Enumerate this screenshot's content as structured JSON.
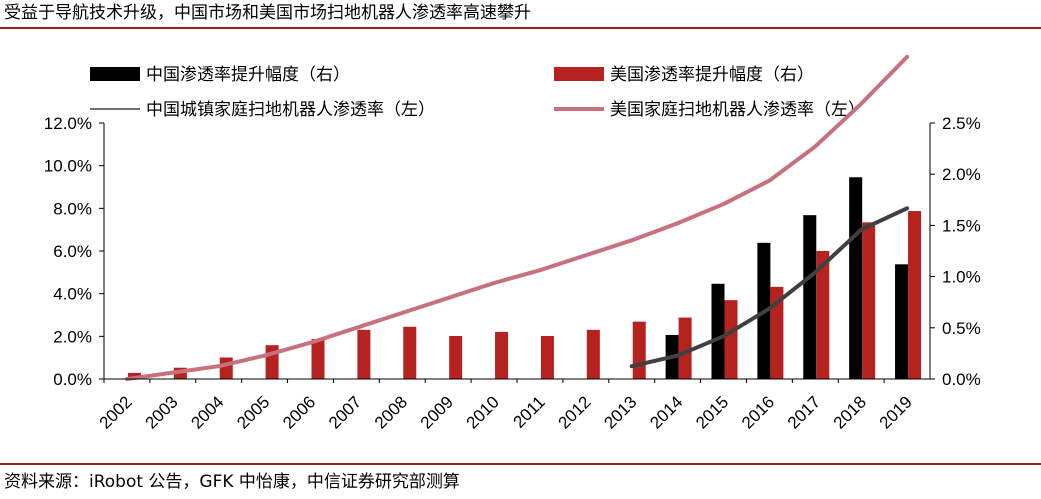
{
  "title": "受益于导航技术升级，中国市场和美国市场扫地机器人渗透率高速攀升",
  "source": "资料来源：iRobot 公告，GFK 中怡康，中信证券研究部测算",
  "chart_data": {
    "type": "bar",
    "categories": [
      "2002",
      "2003",
      "2004",
      "2005",
      "2006",
      "2007",
      "2008",
      "2009",
      "2010",
      "2011",
      "2012",
      "2013",
      "2014",
      "2015",
      "2016",
      "2017",
      "2018",
      "2019"
    ],
    "y_left": {
      "min": 0,
      "max": 12,
      "step": 2,
      "format": "percent1",
      "ticks": [
        "0.0%",
        "2.0%",
        "4.0%",
        "6.0%",
        "8.0%",
        "10.0%",
        "12.0%"
      ]
    },
    "y_right": {
      "min": 0,
      "max": 2.5,
      "step": 0.5,
      "format": "percent1",
      "ticks": [
        "0.0%",
        "0.5%",
        "1.0%",
        "1.5%",
        "2.0%",
        "2.5%"
      ]
    },
    "series": [
      {
        "name": "中国渗透率提升幅度（右）",
        "kind": "bar",
        "axis": "right",
        "color": "#000000",
        "values": [
          null,
          null,
          null,
          null,
          null,
          null,
          null,
          null,
          null,
          null,
          null,
          null,
          0.43,
          0.93,
          1.33,
          1.6,
          1.97,
          1.12
        ]
      },
      {
        "name": "美国渗透率提升幅度（右）",
        "kind": "bar",
        "axis": "right",
        "color": "#b5221f",
        "values": [
          0.06,
          0.11,
          0.21,
          0.33,
          0.39,
          0.48,
          0.51,
          0.42,
          0.46,
          0.42,
          0.48,
          0.56,
          0.6,
          0.77,
          0.9,
          1.25,
          1.53,
          1.64
        ]
      },
      {
        "name": "中国城镇家庭扫地机器人渗透率（左）",
        "kind": "line",
        "axis": "left",
        "color": "#404040",
        "values": [
          null,
          null,
          null,
          null,
          null,
          null,
          null,
          null,
          null,
          null,
          null,
          0.6,
          1.1,
          2.0,
          3.3,
          5.0,
          7.0,
          8.0
        ]
      },
      {
        "name": "美国家庭扫地机器人渗透率（左）",
        "kind": "line",
        "axis": "left",
        "color": "#c8707d",
        "values": [
          0.0,
          0.3,
          0.6,
          1.1,
          1.7,
          2.4,
          3.1,
          3.8,
          4.5,
          5.1,
          5.8,
          6.5,
          7.3,
          8.2,
          9.3,
          10.9,
          12.9,
          15.1
        ]
      }
    ],
    "legend_position": "top"
  }
}
